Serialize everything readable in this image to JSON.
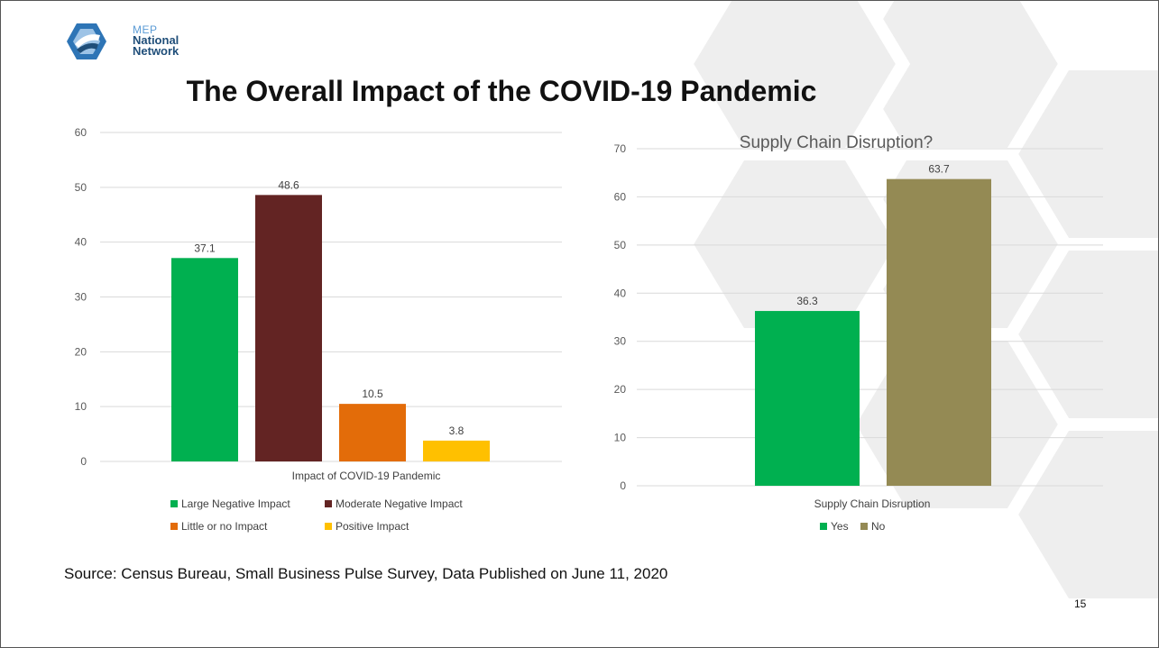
{
  "logo": {
    "line1": "MEP",
    "line2": "National",
    "line3": "Network"
  },
  "title": "The Overall Impact of the COVID-19 Pandemic",
  "source": "Source: Census Bureau, Small Business Pulse Survey, Data Published on June 11, 2020",
  "page_number": "15",
  "chart_data": [
    {
      "type": "bar",
      "title": "",
      "xlabel": "Impact of COVID-19 Pandemic",
      "ylabel": "",
      "ylim": [
        0,
        60
      ],
      "yticks": [
        0,
        10,
        20,
        30,
        40,
        50,
        60
      ],
      "grid": true,
      "legend_position": "bottom",
      "series": [
        {
          "name": "Large Negative Impact",
          "values": [
            37.1
          ],
          "color": "#00b050"
        },
        {
          "name": "Moderate Negative Impact",
          "values": [
            48.6
          ],
          "color": "#632423"
        },
        {
          "name": "Little or no Impact",
          "values": [
            10.5
          ],
          "color": "#e36c09"
        },
        {
          "name": "Positive Impact",
          "values": [
            3.8
          ],
          "color": "#ffc000"
        }
      ]
    },
    {
      "type": "bar",
      "title": "Supply Chain Disruption?",
      "xlabel": "Supply Chain Disruption",
      "ylabel": "",
      "ylim": [
        0,
        70
      ],
      "yticks": [
        0,
        10,
        20,
        30,
        40,
        50,
        60,
        70
      ],
      "grid": true,
      "legend_position": "bottom",
      "series": [
        {
          "name": "Yes",
          "values": [
            36.3
          ],
          "color": "#00b050"
        },
        {
          "name": "No",
          "values": [
            63.7
          ],
          "color": "#948a54"
        }
      ]
    }
  ]
}
